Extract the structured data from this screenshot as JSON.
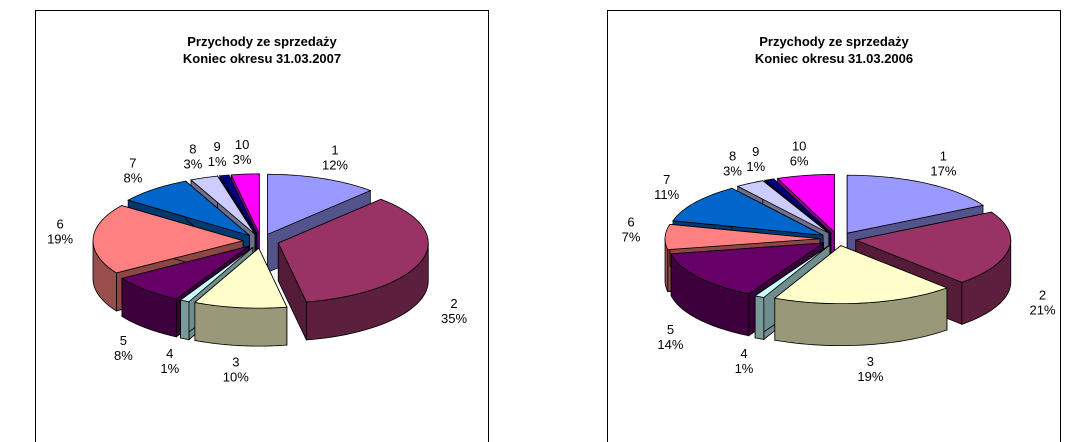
{
  "chart_data": [
    {
      "type": "pie",
      "title": "Przychody ze sprzedaży",
      "subtitle": "Koniec okresu 31.03.2007",
      "categories": [
        "1",
        "2",
        "3",
        "4",
        "5",
        "6",
        "7",
        "8",
        "9",
        "10"
      ],
      "values": [
        12,
        35,
        10,
        1,
        8,
        19,
        8,
        3,
        1,
        3
      ],
      "labels": [
        "12%",
        "35%",
        "10%",
        "1%",
        "8%",
        "19%",
        "8%",
        "3%",
        "1%",
        "3%"
      ],
      "exploded": true,
      "three_d": true,
      "legend": "none"
    },
    {
      "type": "pie",
      "title": "Przychody ze sprzedaży",
      "subtitle": "Koniec okresu 31.03.2006",
      "categories": [
        "1",
        "2",
        "3",
        "4",
        "5",
        "6",
        "7",
        "8",
        "9",
        "10"
      ],
      "values": [
        17,
        21,
        19,
        1,
        14,
        7,
        11,
        3,
        1,
        6
      ],
      "labels": [
        "17%",
        "21%",
        "19%",
        "1%",
        "14%",
        "7%",
        "11%",
        "3%",
        "1%",
        "6%"
      ],
      "exploded": true,
      "three_d": true,
      "legend": "none"
    }
  ],
  "colors": [
    "#9999ff",
    "#993366",
    "#ffffcc",
    "#ccffff",
    "#660066",
    "#ff8080",
    "#0066cc",
    "#ccccff",
    "#000080",
    "#ff00ff"
  ]
}
